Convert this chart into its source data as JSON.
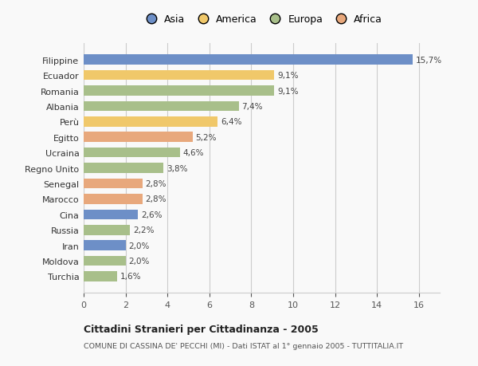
{
  "categories": [
    "Filippine",
    "Ecuador",
    "Romania",
    "Albania",
    "Perù",
    "Egitto",
    "Ucraina",
    "Regno Unito",
    "Senegal",
    "Marocco",
    "Cina",
    "Russia",
    "Iran",
    "Moldova",
    "Turchia"
  ],
  "values": [
    15.7,
    9.1,
    9.1,
    7.4,
    6.4,
    5.2,
    4.6,
    3.8,
    2.8,
    2.8,
    2.6,
    2.2,
    2.0,
    2.0,
    1.6
  ],
  "labels": [
    "15,7%",
    "9,1%",
    "9,1%",
    "7,4%",
    "6,4%",
    "5,2%",
    "4,6%",
    "3,8%",
    "2,8%",
    "2,8%",
    "2,6%",
    "2,2%",
    "2,0%",
    "2,0%",
    "1,6%"
  ],
  "colors": [
    "#6d8fc7",
    "#f0c86a",
    "#a8bf8a",
    "#a8bf8a",
    "#f0c86a",
    "#e8a87c",
    "#a8bf8a",
    "#a8bf8a",
    "#e8a87c",
    "#e8a87c",
    "#6d8fc7",
    "#a8bf8a",
    "#6d8fc7",
    "#a8bf8a",
    "#a8bf8a"
  ],
  "legend_labels": [
    "Asia",
    "America",
    "Europa",
    "Africa"
  ],
  "legend_colors": [
    "#6d8fc7",
    "#f0c86a",
    "#a8bf8a",
    "#e8a87c"
  ],
  "title1": "Cittadini Stranieri per Cittadinanza - 2005",
  "title2": "COMUNE DI CASSINA DE' PECCHI (MI) - Dati ISTAT al 1° gennaio 2005 - TUTTITALIA.IT",
  "xlim": [
    0,
    17
  ],
  "xticks": [
    0,
    2,
    4,
    6,
    8,
    10,
    12,
    14,
    16
  ],
  "background_color": "#f9f9f9",
  "grid_color": "#cccccc"
}
